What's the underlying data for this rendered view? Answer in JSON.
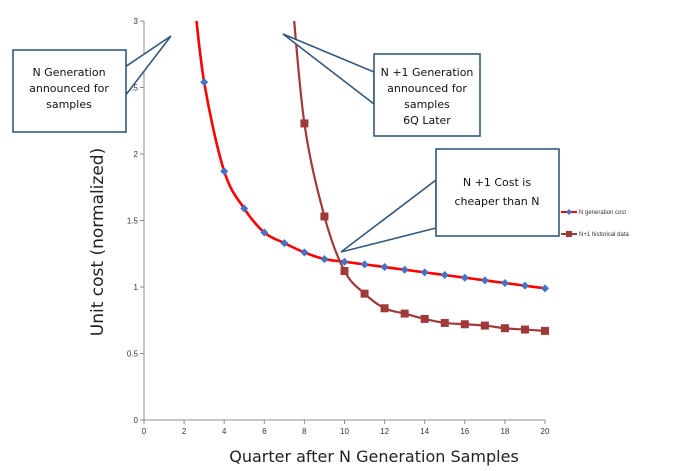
{
  "chart_data": {
    "type": "line",
    "xlabel": "Quarter after N Generation  Samples",
    "ylabel": "Unit cost (normalized)",
    "xlim": [
      0,
      20
    ],
    "ylim": [
      0,
      3
    ],
    "xticks": [
      "0",
      "2",
      "4",
      "6",
      "8",
      "10",
      "12",
      "14",
      "16",
      "18",
      "20"
    ],
    "yticks": [
      "0",
      "0.5",
      "1",
      "1.5",
      "2",
      "2.5",
      "3"
    ],
    "grid": false,
    "legend_position": "right",
    "series": [
      {
        "name": "N generation cost",
        "color": "#ff0000",
        "marker_color": "#4472c4",
        "marker": "diamond",
        "x": [
          3,
          4,
          5,
          6,
          7,
          8,
          9,
          10,
          11,
          12,
          13,
          14,
          15,
          16,
          17,
          18,
          19,
          20
        ],
        "y": [
          2.54,
          1.87,
          1.59,
          1.41,
          1.33,
          1.26,
          1.21,
          1.19,
          1.17,
          1.15,
          1.13,
          1.11,
          1.09,
          1.07,
          1.05,
          1.03,
          1.01,
          0.99
        ]
      },
      {
        "name": "N+1 historical data",
        "color": "#a0393a",
        "marker_color": "#a0393a",
        "marker": "square",
        "x": [
          8,
          9,
          10,
          11,
          12,
          13,
          14,
          15,
          16,
          17,
          18,
          19,
          20
        ],
        "y": [
          2.23,
          1.53,
          1.12,
          0.95,
          0.84,
          0.8,
          0.76,
          0.73,
          0.72,
          0.71,
          0.69,
          0.68,
          0.67
        ]
      }
    ],
    "annotations": [
      {
        "lines": [
          "N  Generation",
          "announced for",
          "samples"
        ]
      },
      {
        "lines": [
          "N +1 Generation",
          "announced for",
          "samples",
          "6Q Later"
        ]
      },
      {
        "lines": [
          "N +1 Cost is",
          "cheaper than N"
        ]
      }
    ]
  }
}
